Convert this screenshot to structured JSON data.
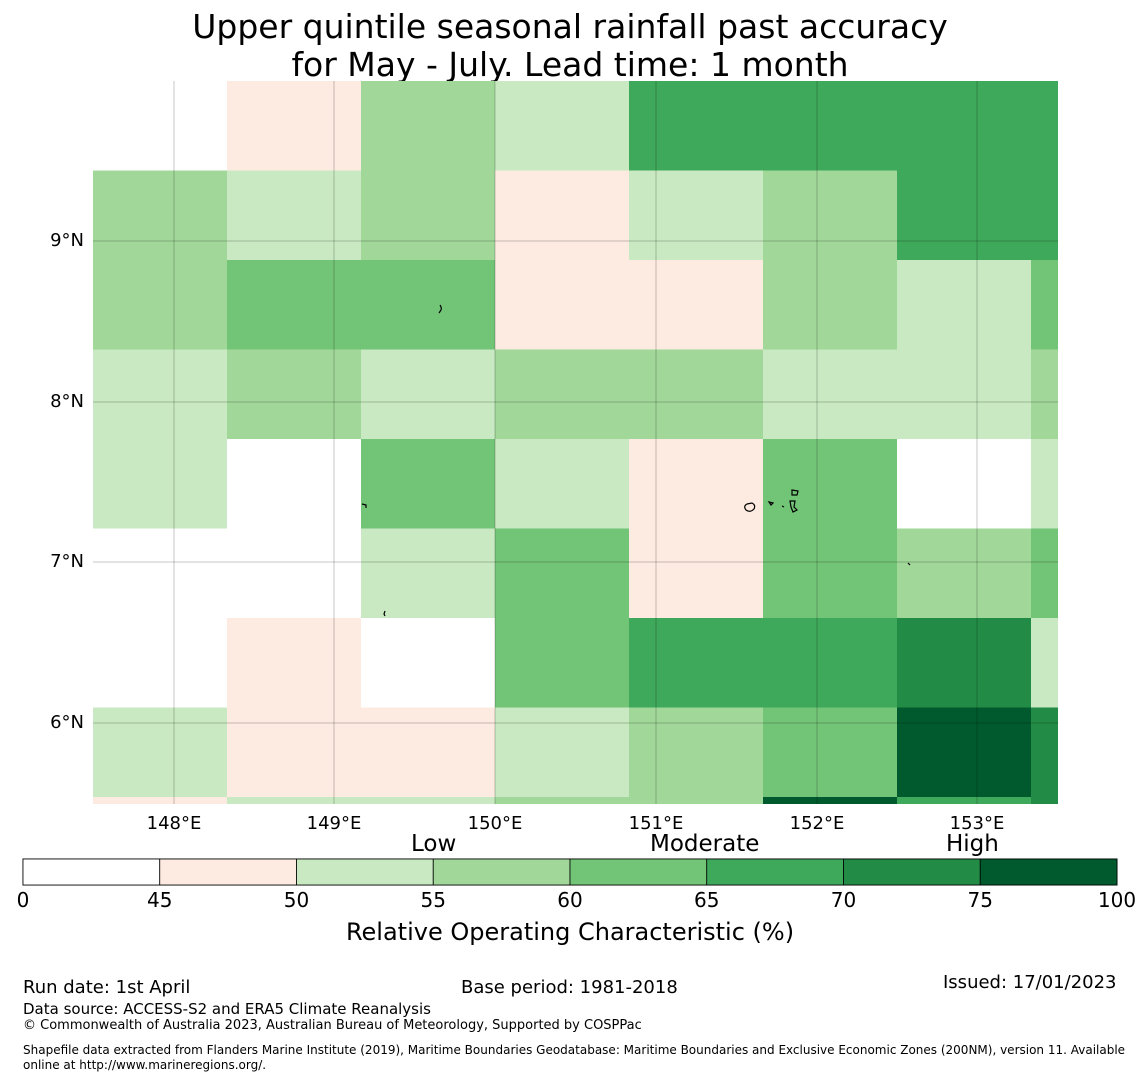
{
  "title_line1": "Upper quintile seasonal rainfall past accuracy",
  "title_line2": "for May - July. Lead time: 1 month",
  "map": {
    "lon_labels": [
      "148°E",
      "149°E",
      "150°E",
      "151°E",
      "152°E",
      "153°E"
    ],
    "lat_labels": [
      "9°N",
      "8°N",
      "7°N",
      "6°N"
    ],
    "color_levels": [
      "#ffffff",
      "#fdeae0",
      "#c8e9c1",
      "#a1d899",
      "#72c476",
      "#3fa95b",
      "#228b45",
      "#005a2e"
    ],
    "grid_rows": [
      [
        0,
        1,
        3,
        2,
        5,
        5,
        5,
        5
      ],
      [
        3,
        2,
        3,
        1,
        2,
        3,
        5,
        5
      ],
      [
        3,
        4,
        4,
        1,
        1,
        3,
        2,
        4
      ],
      [
        2,
        3,
        2,
        3,
        3,
        2,
        2,
        3
      ],
      [
        2,
        0,
        4,
        2,
        1,
        4,
        0,
        2
      ],
      [
        0,
        0,
        2,
        4,
        1,
        4,
        3,
        4
      ],
      [
        0,
        1,
        0,
        4,
        5,
        5,
        6,
        2
      ],
      [
        2,
        1,
        1,
        2,
        3,
        4,
        7,
        6
      ],
      [
        1,
        2,
        2,
        3,
        3,
        7,
        5,
        6
      ]
    ]
  },
  "colorbar": {
    "category_low": "Low",
    "category_moderate": "Moderate",
    "category_high": "High",
    "bounds": [
      0,
      45,
      50,
      55,
      60,
      65,
      70,
      75,
      100
    ],
    "tick_labels": [
      "0",
      "45",
      "50",
      "55",
      "60",
      "65",
      "70",
      "75",
      "100"
    ],
    "axis_title": "Relative Operating Characteristic (%)"
  },
  "footer": {
    "run_date": "Run date: 1st April",
    "base_period": "Base period: 1981-2018",
    "issued": "Issued: 17/01/2023",
    "data_source": "Data source: ACCESS-S2 and ERA5 Climate Reanalysis",
    "copyright": "© Commonwealth of Australia 2023, Australian Bureau of Meteorology, Supported by COSPPac",
    "shapefile_line1": "Shapefile data extracted from Flanders Marine Institute (2019), Maritime Boundaries Geodatabase: Maritime Boundaries and Exclusive Economic Zones (200NM), version 11. Available",
    "shapefile_line2": "online at http://www.marineregions.org/."
  }
}
